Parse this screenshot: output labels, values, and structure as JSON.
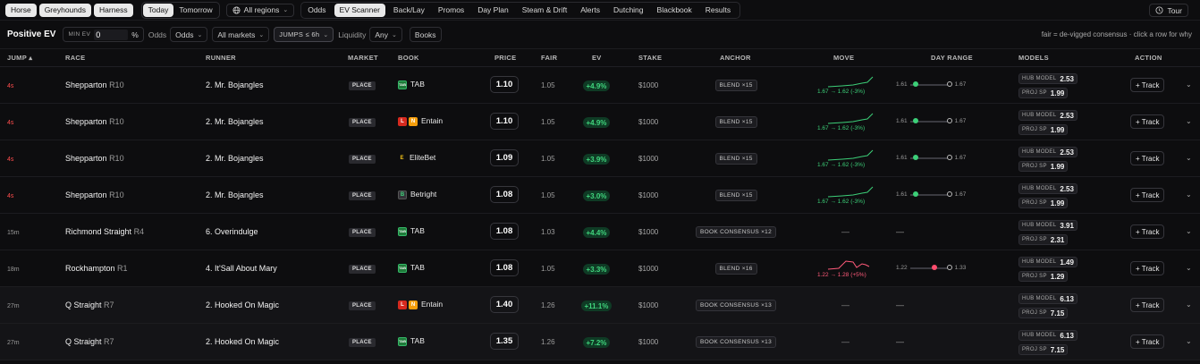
{
  "nav": {
    "codes": [
      "Horse",
      "Greyhounds",
      "Harness"
    ],
    "days": [
      "Today",
      "Tomorrow"
    ],
    "region": "All regions",
    "tabs": [
      "Odds",
      "EV Scanner",
      "Back/Lay",
      "Promos",
      "Day Plan",
      "Steam & Drift",
      "Alerts",
      "Dutching",
      "Blackbook",
      "Results"
    ],
    "active_tab": "EV Scanner",
    "tour": "Tour"
  },
  "filters": {
    "title": "Positive EV",
    "min_ev_label": "MIN EV",
    "min_ev_value": "0",
    "min_ev_unit": "%",
    "odds_label": "Odds",
    "odds_value": "Odds",
    "markets_value": "All markets",
    "jumps_value": "JUMPS ≤ 6h",
    "liquidity_label": "Liquidity",
    "liquidity_value": "Any",
    "books_button": "Books",
    "note": "fair = de-vigged consensus · click a row for why"
  },
  "columns": [
    "JUMP",
    "RACE",
    "RUNNER",
    "MARKET",
    "BOOK",
    "PRICE",
    "FAIR",
    "EV",
    "STAKE",
    "ANCHOR",
    "MOVE",
    "DAY RANGE",
    "MODELS",
    "ACTION"
  ],
  "sort_indicator": "▴",
  "track_label": "+ Track",
  "hub_label": "HUB MODEL",
  "proj_label": "PROJ SP",
  "rows": [
    {
      "jump": "4s",
      "urgent": true,
      "race": "Shepparton",
      "rn": "R10",
      "runner": "2. Mr. Bojangles",
      "market": "PLACE",
      "book": "TAB",
      "book_icon": "tab-icon",
      "price": "1.10",
      "fair": "1.05",
      "ev": "+4.9%",
      "stake": "$1000",
      "anchor": "BLEND ×15",
      "move": "1.67 → 1.62 (-3%)",
      "move_dir": "down",
      "dr_low": "1.61",
      "dr_high": "1.67",
      "dr_pos": 0.08,
      "dr_color": "green",
      "hub": "2.53",
      "proj": "1.99"
    },
    {
      "jump": "4s",
      "urgent": true,
      "race": "Shepparton",
      "rn": "R10",
      "runner": "2. Mr. Bojangles",
      "market": "PLACE",
      "book": "Entain",
      "book_icon": "entain-icon",
      "price": "1.10",
      "fair": "1.05",
      "ev": "+4.9%",
      "stake": "$1000",
      "anchor": "BLEND ×15",
      "move": "1.67 → 1.62 (-3%)",
      "move_dir": "down",
      "dr_low": "1.61",
      "dr_high": "1.67",
      "dr_pos": 0.08,
      "dr_color": "green",
      "hub": "2.53",
      "proj": "1.99"
    },
    {
      "jump": "4s",
      "urgent": true,
      "race": "Shepparton",
      "rn": "R10",
      "runner": "2. Mr. Bojangles",
      "market": "PLACE",
      "book": "EliteBet",
      "book_icon": "elitebet-icon",
      "price": "1.09",
      "fair": "1.05",
      "ev": "+3.9%",
      "stake": "$1000",
      "anchor": "BLEND ×15",
      "move": "1.67 → 1.62 (-3%)",
      "move_dir": "down",
      "dr_low": "1.61",
      "dr_high": "1.67",
      "dr_pos": 0.08,
      "dr_color": "green",
      "hub": "2.53",
      "proj": "1.99"
    },
    {
      "jump": "4s",
      "urgent": true,
      "race": "Shepparton",
      "rn": "R10",
      "runner": "2. Mr. Bojangles",
      "market": "PLACE",
      "book": "Betright",
      "book_icon": "betright-icon",
      "price": "1.08",
      "fair": "1.05",
      "ev": "+3.0%",
      "stake": "$1000",
      "anchor": "BLEND ×15",
      "move": "1.67 → 1.62 (-3%)",
      "move_dir": "down",
      "dr_low": "1.61",
      "dr_high": "1.67",
      "dr_pos": 0.08,
      "dr_color": "green",
      "hub": "2.53",
      "proj": "1.99"
    },
    {
      "jump": "15m",
      "urgent": false,
      "race": "Richmond Straight",
      "rn": "R4",
      "runner": "6. Overindulge",
      "market": "PLACE",
      "book": "TAB",
      "book_icon": "tab-icon",
      "price": "1.08",
      "fair": "1.03",
      "ev": "+4.4%",
      "stake": "$1000",
      "anchor": "BOOK CONSENSUS ×12",
      "move": "—",
      "move_dir": "none",
      "dr_low": "—",
      "dr_high": "",
      "dr_pos": null,
      "dr_color": "",
      "hub": "3.91",
      "proj": "2.31"
    },
    {
      "jump": "18m",
      "urgent": false,
      "race": "Rockhampton",
      "rn": "R1",
      "runner": "4. It'Sall About Mary",
      "market": "PLACE",
      "book": "TAB",
      "book_icon": "tab-icon",
      "price": "1.08",
      "fair": "1.05",
      "ev": "+3.3%",
      "stake": "$1000",
      "anchor": "BLEND ×16",
      "move": "1.22 → 1.28 (+5%)",
      "move_dir": "up",
      "dr_low": "1.22",
      "dr_high": "1.33",
      "dr_pos": 0.55,
      "dr_color": "red",
      "hub": "1.49",
      "proj": "1.29"
    },
    {
      "jump": "27m",
      "urgent": false,
      "race": "Q Straight",
      "rn": "R7",
      "runner": "2. Hooked On Magic",
      "market": "PLACE",
      "book": "Entain",
      "book_icon": "entain-icon",
      "price": "1.40",
      "fair": "1.26",
      "ev": "+11.1%",
      "stake": "$1000",
      "anchor": "BOOK CONSENSUS ×13",
      "move": "—",
      "move_dir": "none",
      "dr_low": "—",
      "dr_high": "",
      "dr_pos": null,
      "dr_color": "",
      "hub": "6.13",
      "proj": "7.15"
    },
    {
      "jump": "27m",
      "urgent": false,
      "race": "Q Straight",
      "rn": "R7",
      "runner": "2. Hooked On Magic",
      "market": "PLACE",
      "book": "TAB",
      "book_icon": "tab-icon",
      "price": "1.35",
      "fair": "1.26",
      "ev": "+7.2%",
      "stake": "$1000",
      "anchor": "BOOK CONSENSUS ×13",
      "move": "—",
      "move_dir": "none",
      "dr_low": "—",
      "dr_high": "",
      "dr_pos": null,
      "dr_color": "",
      "hub": "6.13",
      "proj": "7.15"
    }
  ]
}
